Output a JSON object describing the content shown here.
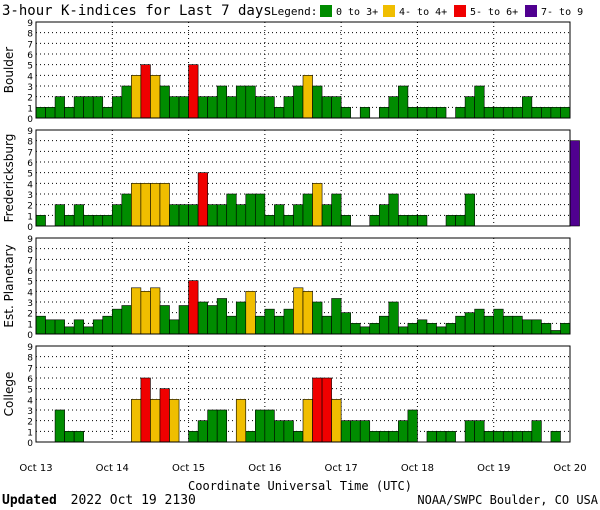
{
  "title": "3-hour K-indices for Last 7 days",
  "legend": {
    "label": "Legend:",
    "items": [
      {
        "label": "0 to 3+",
        "color": "#008c00"
      },
      {
        "label": "4- to 4+",
        "color": "#f0be00"
      },
      {
        "label": "5- to 6+",
        "color": "#f00000"
      },
      {
        "label": "7- to 9",
        "color": "#500090"
      }
    ]
  },
  "xlabel": "Coordinate Universal Time (UTC)",
  "footer_left_bold": "Updated",
  "footer_left_rest": "2022 Oct 19 2130",
  "footer_right": "NOAA/SWPC Boulder, CO USA",
  "chart_data": [
    {
      "type": "bar",
      "name": "Boulder",
      "x_ticks": [
        "Oct 13",
        "Oct 14",
        "Oct 15",
        "Oct 16",
        "Oct 17",
        "Oct 18",
        "Oct 19",
        "Oct 20"
      ],
      "ylim": [
        0,
        9
      ],
      "y_ticks": [
        0,
        1,
        2,
        3,
        4,
        5,
        6,
        7,
        8,
        9
      ],
      "values": [
        1,
        1,
        2,
        1,
        2,
        2,
        2,
        1,
        2,
        3,
        4,
        5,
        4,
        3,
        2,
        2,
        5,
        2,
        2,
        3,
        2,
        3,
        3,
        2,
        2,
        1,
        2,
        3,
        4,
        3,
        2,
        2,
        1,
        0,
        1,
        0,
        1,
        2,
        3,
        1,
        1,
        1,
        1,
        0,
        1,
        2,
        3,
        1,
        1,
        1,
        1,
        2,
        1,
        1,
        1,
        1,
        0,
        0
      ]
    },
    {
      "type": "bar",
      "name": "Fredericksburg",
      "x_ticks": [
        "Oct 13",
        "Oct 14",
        "Oct 15",
        "Oct 16",
        "Oct 17",
        "Oct 18",
        "Oct 19",
        "Oct 20"
      ],
      "ylim": [
        0,
        9
      ],
      "y_ticks": [
        0,
        1,
        2,
        3,
        4,
        5,
        6,
        7,
        8,
        9
      ],
      "values": [
        1,
        0,
        2,
        1,
        2,
        1,
        1,
        1,
        2,
        3,
        4,
        4,
        4,
        4,
        2,
        2,
        2,
        5,
        2,
        2,
        3,
        2,
        3,
        3,
        1,
        2,
        1,
        2,
        3,
        4,
        2,
        3,
        1,
        0,
        0,
        1,
        2,
        3,
        1,
        1,
        1,
        0,
        0,
        1,
        1,
        3,
        0,
        0,
        0,
        0,
        0,
        0,
        0,
        0,
        0,
        0,
        8,
        0
      ]
    },
    {
      "type": "bar",
      "name": "Est. Planetary",
      "x_ticks": [
        "Oct 13",
        "Oct 14",
        "Oct 15",
        "Oct 16",
        "Oct 17",
        "Oct 18",
        "Oct 19",
        "Oct 20"
      ],
      "ylim": [
        0,
        9
      ],
      "y_ticks": [
        0,
        1,
        2,
        3,
        4,
        5,
        6,
        7,
        8,
        9
      ],
      "values": [
        1.67,
        1.33,
        1.33,
        0.67,
        1.33,
        0.67,
        1.33,
        1.67,
        2.33,
        2.67,
        4.33,
        4,
        4.33,
        2.67,
        1.33,
        2.67,
        5,
        3,
        2.67,
        3.33,
        1.67,
        3,
        4,
        1.67,
        2.33,
        1.67,
        2.33,
        4.33,
        4,
        3,
        1.67,
        3.33,
        2,
        1,
        0.67,
        1,
        1.67,
        3,
        0.67,
        1,
        1.33,
        1,
        0.67,
        1,
        1.67,
        2,
        2.33,
        1.67,
        2.33,
        1.67,
        1.67,
        1.33,
        1.33,
        1,
        0.33,
        1
      ]
    },
    {
      "type": "bar",
      "name": "College",
      "x_ticks": [
        "Oct 13",
        "Oct 14",
        "Oct 15",
        "Oct 16",
        "Oct 17",
        "Oct 18",
        "Oct 19",
        "Oct 20"
      ],
      "ylim": [
        0,
        9
      ],
      "y_ticks": [
        0,
        1,
        2,
        3,
        4,
        5,
        6,
        7,
        8,
        9
      ],
      "values": [
        0,
        0,
        3,
        1,
        1,
        0,
        0,
        0,
        0,
        0,
        4,
        6,
        4,
        5,
        4,
        0,
        1,
        2,
        3,
        3,
        0,
        4,
        1,
        3,
        3,
        2,
        2,
        1,
        4,
        6,
        6,
        4,
        2,
        2,
        2,
        1,
        1,
        1,
        2,
        3,
        0,
        1,
        1,
        1,
        0,
        2,
        2,
        1,
        1,
        1,
        1,
        1,
        2,
        0,
        1,
        0,
        0,
        0
      ]
    }
  ]
}
